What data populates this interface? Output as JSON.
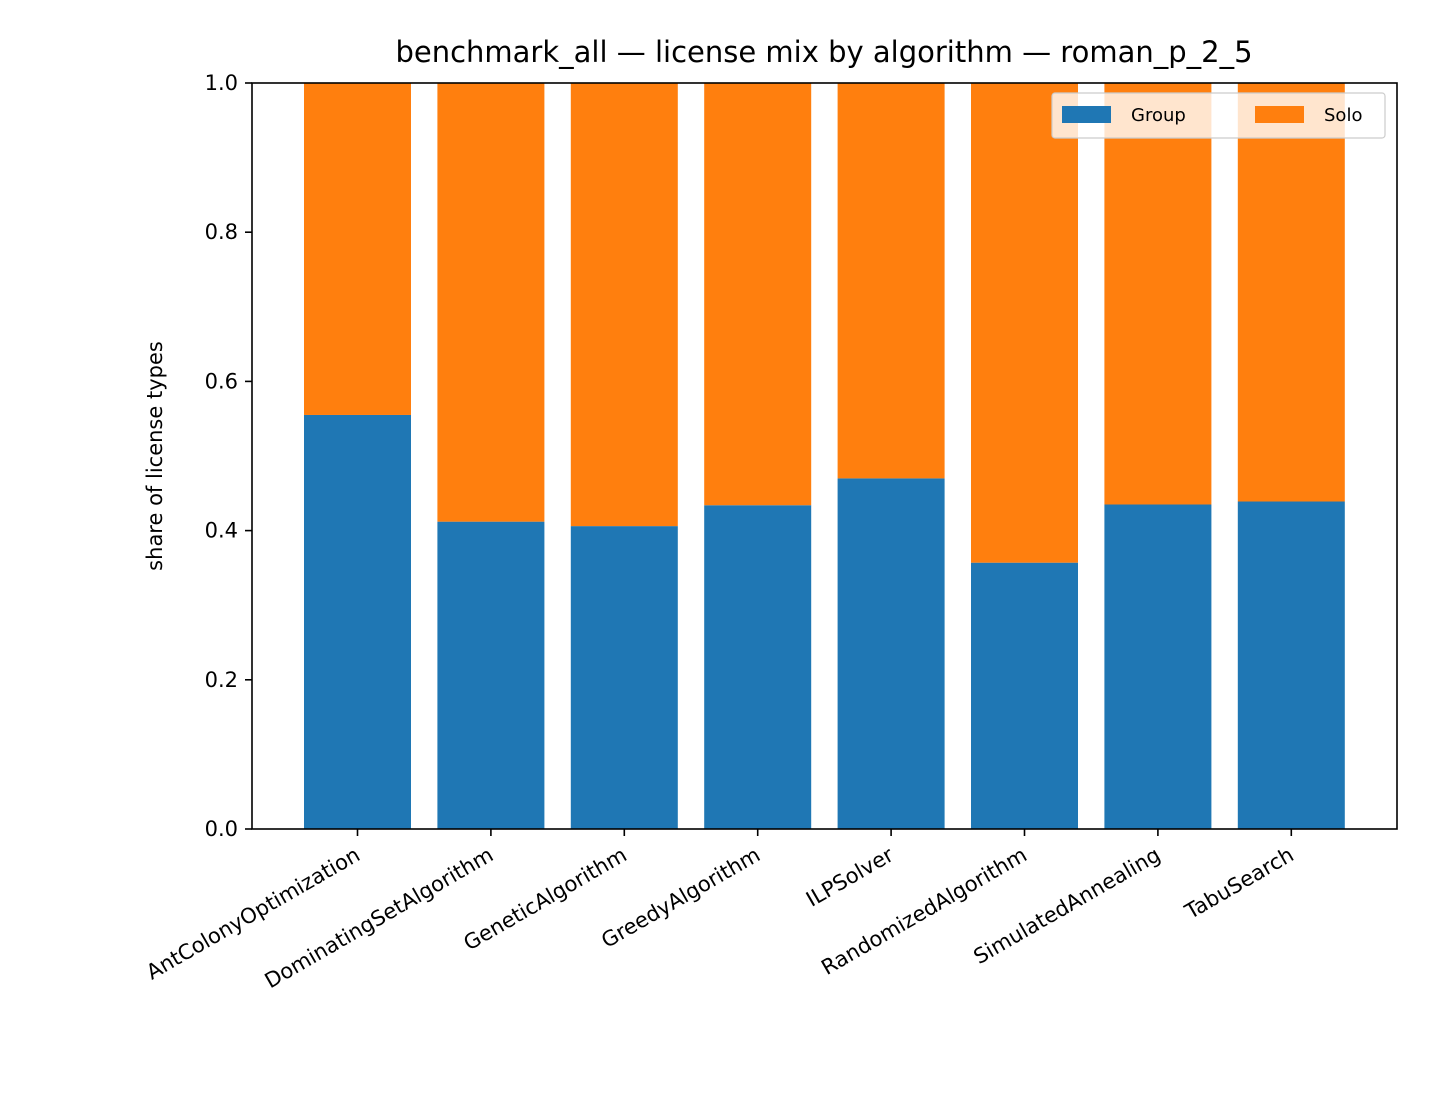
{
  "chart_data": {
    "type": "bar",
    "stacked": true,
    "title": "benchmark_all — license mix by algorithm — roman_p_2_5",
    "xlabel": "",
    "ylabel": "share of license types",
    "ylim": [
      0,
      1.0
    ],
    "yticks": [
      "0.0",
      "0.2",
      "0.4",
      "0.6",
      "0.8",
      "1.0"
    ],
    "categories": [
      "AntColonyOptimization",
      "DominatingSetAlgorithm",
      "GeneticAlgorithm",
      "GreedyAlgorithm",
      "ILPSolver",
      "RandomizedAlgorithm",
      "SimulatedAnnealing",
      "TabuSearch"
    ],
    "series": [
      {
        "name": "Group",
        "color": "#1f77b4",
        "values": [
          0.555,
          0.412,
          0.406,
          0.434,
          0.47,
          0.357,
          0.435,
          0.439
        ]
      },
      {
        "name": "Solo",
        "color": "#ff7f0e",
        "values": [
          0.445,
          0.588,
          0.594,
          0.566,
          0.53,
          0.643,
          0.565,
          0.561
        ]
      }
    ],
    "grid": false,
    "legend_position": "top-right"
  }
}
